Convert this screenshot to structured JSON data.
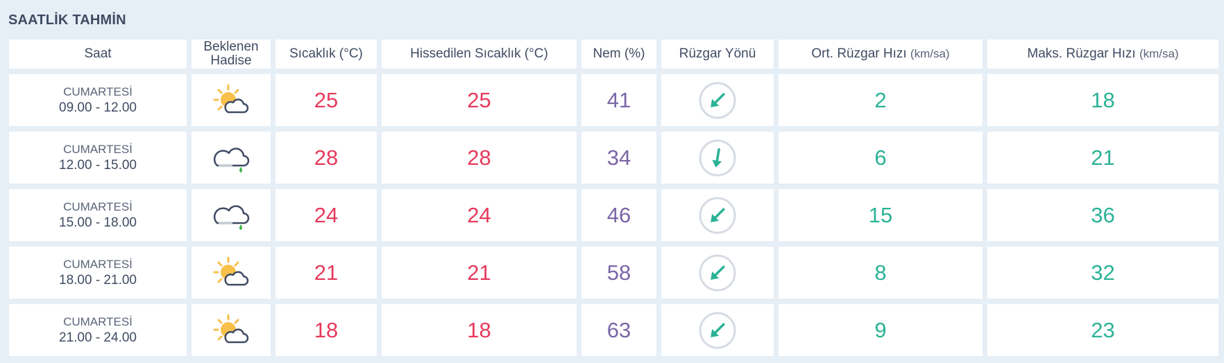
{
  "title": "SAATLİK TAHMİN",
  "headers": {
    "saat": "Saat",
    "hadise": "Beklenen Hadise",
    "sicaklik": "Sıcaklık (°C)",
    "hissedilen": "Hissedilen Sıcaklık (°C)",
    "nem": "Nem (%)",
    "yon": "Rüzgar Yönü",
    "ort": "Ort. Rüzgar Hızı",
    "ort_unit": "(km/sa)",
    "maks": "Maks. Rüzgar Hızı",
    "maks_unit": "(km/sa)"
  },
  "colors": {
    "temp": "#e63a5c",
    "humidity": "#7a66a6",
    "wind": "#2bb296"
  },
  "rows": [
    {
      "day": "CUMARTESİ",
      "time": "09.00 - 12.00",
      "icon": "partly-sunny-icon",
      "temp": "25",
      "feels": "25",
      "humidity": "41",
      "wind_dir": "southwest",
      "wind_deg": 225,
      "avg": "2",
      "max": "18"
    },
    {
      "day": "CUMARTESİ",
      "time": "12.00 - 15.00",
      "icon": "cloud-drizzle-icon",
      "temp": "28",
      "feels": "28",
      "humidity": "34",
      "wind_dir": "south",
      "wind_deg": 190,
      "avg": "6",
      "max": "21"
    },
    {
      "day": "CUMARTESİ",
      "time": "15.00 - 18.00",
      "icon": "cloud-drizzle-icon",
      "temp": "24",
      "feels": "24",
      "humidity": "46",
      "wind_dir": "southwest",
      "wind_deg": 225,
      "avg": "15",
      "max": "36"
    },
    {
      "day": "CUMARTESİ",
      "time": "18.00 - 21.00",
      "icon": "partly-sunny-icon",
      "temp": "21",
      "feels": "21",
      "humidity": "58",
      "wind_dir": "southwest",
      "wind_deg": 225,
      "avg": "8",
      "max": "32"
    },
    {
      "day": "CUMARTESİ",
      "time": "21.00 - 24.00",
      "icon": "partly-sunny-icon",
      "temp": "18",
      "feels": "18",
      "humidity": "63",
      "wind_dir": "southwest",
      "wind_deg": 225,
      "avg": "9",
      "max": "23"
    }
  ]
}
